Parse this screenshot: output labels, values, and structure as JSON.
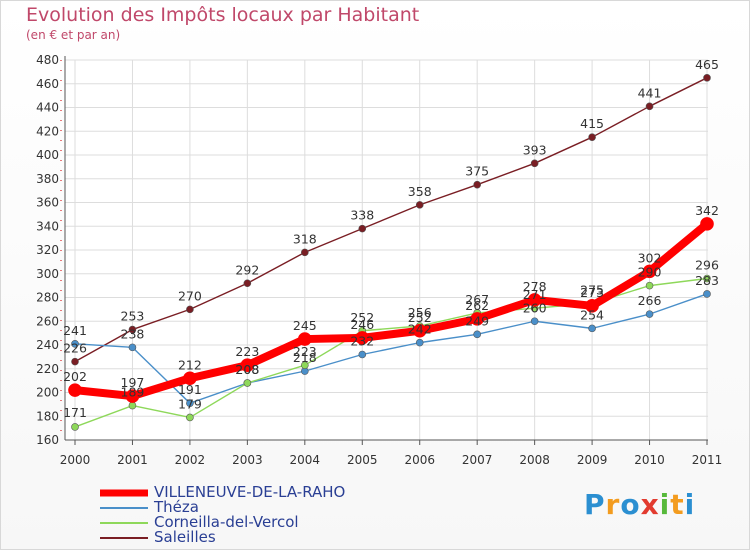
{
  "title": "Evolution des Impôts locaux par Habitant",
  "subtitle": "(en € et par an)",
  "brand": {
    "letters": [
      "P",
      "r",
      "o",
      "x",
      "i",
      "t",
      "i"
    ],
    "colors": [
      "#2b8fd1",
      "#f39c1f",
      "#2b8fd1",
      "#e23b2f",
      "#57b93b",
      "#f39c1f",
      "#2b8fd1"
    ]
  },
  "chart_data": {
    "type": "line",
    "x": [
      "2000",
      "2001",
      "2002",
      "2003",
      "2004",
      "2005",
      "2006",
      "2007",
      "2008",
      "2009",
      "2010",
      "2011"
    ],
    "ylim": [
      160,
      480
    ],
    "yticks": [
      160,
      180,
      200,
      220,
      240,
      260,
      280,
      300,
      320,
      340,
      360,
      380,
      400,
      420,
      440,
      460,
      480
    ],
    "grid": true,
    "legend_position": "bottom-left",
    "series": [
      {
        "name": "Saleilles",
        "color": "#7a1e24",
        "values": [
          226,
          253,
          270,
          292,
          318,
          338,
          358,
          375,
          393,
          415,
          441,
          465
        ]
      },
      {
        "name": "Théza",
        "color": "#4a8fc9",
        "values": [
          241,
          238,
          191,
          208,
          218,
          232,
          242,
          249,
          260,
          254,
          266,
          283
        ]
      },
      {
        "name": "Corneilla-del-Vercol",
        "color": "#8ed85a",
        "values": [
          171,
          189,
          179,
          208,
          223,
          252,
          256,
          267,
          271,
          275,
          290,
          296
        ]
      },
      {
        "name": "VILLENEUVE-DE-LA-RAHO",
        "color": "#ff0000",
        "values": [
          202,
          197,
          212,
          223,
          245,
          246,
          252,
          262,
          278,
          273,
          302,
          342
        ]
      }
    ],
    "legend": [
      "VILLENEUVE-DE-LA-RAHO",
      "Théza",
      "Corneilla-del-Vercol",
      "Saleilles"
    ]
  }
}
